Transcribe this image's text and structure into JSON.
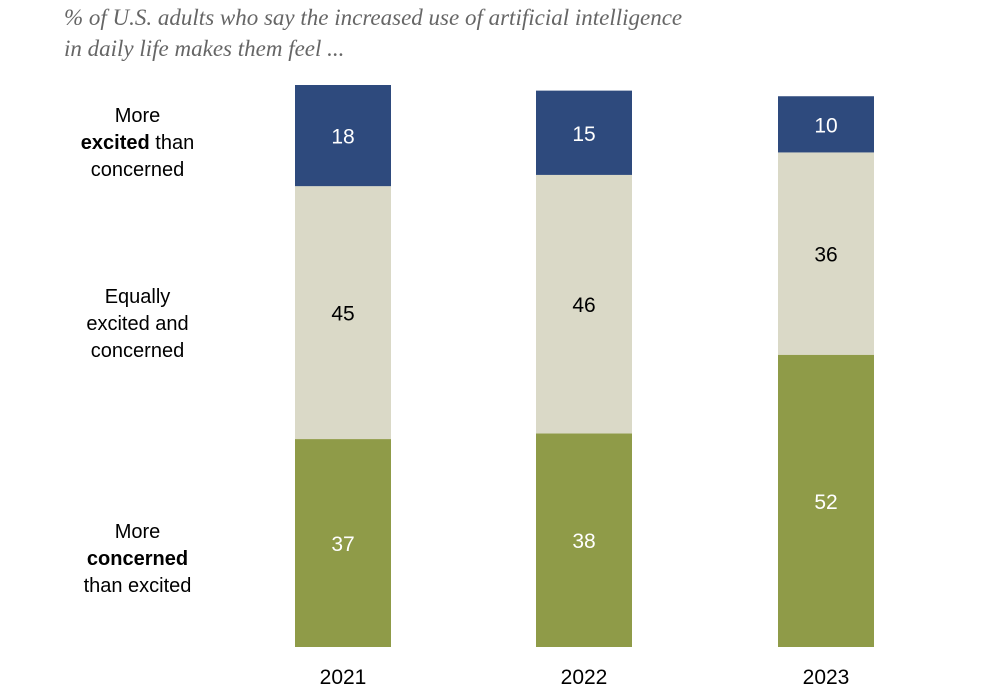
{
  "subtitle": "% of U.S. adults who say the increased use of artificial intelligence in daily life makes them feel ...",
  "row_labels": {
    "excited": {
      "pre": "More",
      "bold": "excited",
      "post": "than",
      "last": "concerned"
    },
    "equal": {
      "line1": "Equally",
      "line2": "excited and",
      "line3": "concerned"
    },
    "concerned": {
      "pre": "More",
      "bold": "concerned",
      "post": "than excited"
    }
  },
  "colors": {
    "excited": "#2e4a7d",
    "equal": "#dad9c7",
    "concerned": "#8f9b48"
  },
  "chart_data": {
    "type": "bar",
    "stacked": true,
    "categories": [
      "2021",
      "2022",
      "2023"
    ],
    "series": [
      {
        "key": "concerned",
        "values": [
          37,
          38,
          52
        ],
        "label_color": "#ffffff"
      },
      {
        "key": "equal",
        "values": [
          45,
          46,
          36
        ],
        "label_color": "#000000"
      },
      {
        "key": "excited",
        "values": [
          18,
          15,
          10
        ],
        "label_color": "#ffffff"
      }
    ],
    "ylim": [
      0,
      100
    ],
    "grid": false,
    "legend": "left"
  }
}
